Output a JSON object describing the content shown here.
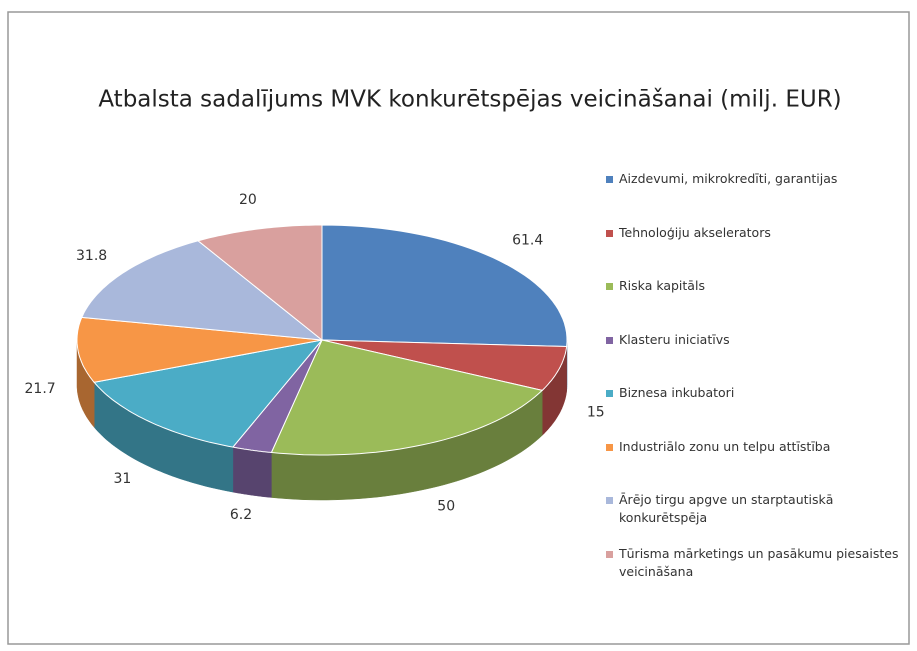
{
  "chart_data": {
    "type": "pie3d",
    "title": "Atbalsta sadalījums MVK konkurētspējas veicināšanai (milj. EUR)",
    "categories": [
      "Aizdevumi, mikrokredīti, garantijas",
      "Tehnoloģiju akselerators",
      "Riska kapitāls",
      "Klasteru iniciatīvs",
      "Biznesa inkubatori",
      "Industriālo zonu un telpu attīstība",
      "Ārējo tirgu apgve un starptautiskā konkurētspēja",
      "Tūrisma mārketings un pasākumu piesaistes veicināšana"
    ],
    "values": [
      61.4,
      15,
      50,
      6.2,
      31,
      21.7,
      31.8,
      20
    ],
    "colors": [
      "#4f81bd",
      "#c0504d",
      "#9bbb59",
      "#8064a2",
      "#4bacc6",
      "#f79646",
      "#a9b8db",
      "#d9a09e"
    ],
    "legend": "right"
  }
}
